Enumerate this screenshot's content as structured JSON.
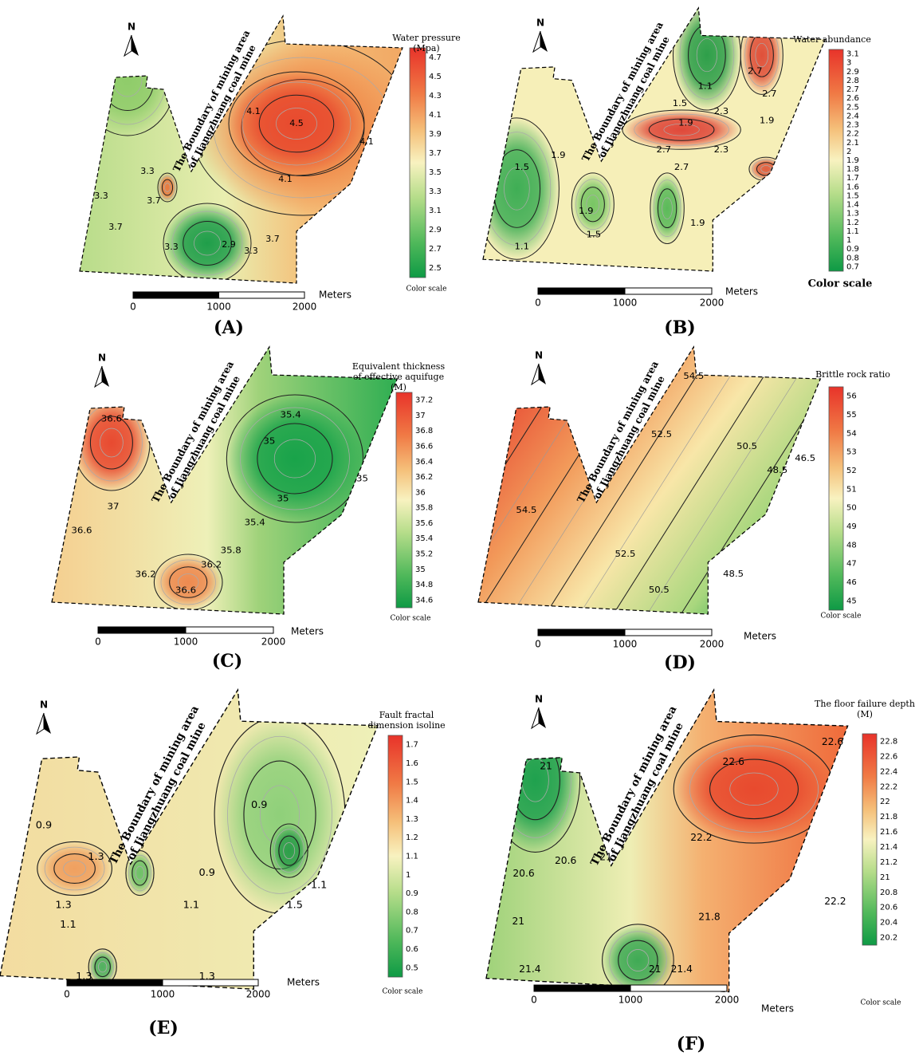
{
  "panels": [
    {
      "label": "(A)",
      "legend_title": [
        "Water pressure",
        "(Mpa)"
      ],
      "colorbar_ticks": [
        "4.7",
        "4.5",
        "4.3",
        "4.1",
        "3.9",
        "3.7",
        "3.5",
        "3.3",
        "3.1",
        "2.9",
        "2.7",
        "2.5"
      ],
      "color_scale": "Color scale",
      "north": "N",
      "boundary_text": [
        "The Boundary of mining area",
        "of Jiangzhuang coal mine"
      ],
      "scale_labels": [
        "0",
        "1000",
        "2000"
      ],
      "scale_unit": "Meters",
      "contour_labels": [
        "4.1",
        "4.5",
        "4.1",
        "4.1",
        "3.3",
        "3.3",
        "3.7",
        "3.7",
        "3.3",
        "2.9",
        "3.3",
        "3.7"
      ]
    },
    {
      "label": "(B)",
      "legend_title": [
        "Water abundance"
      ],
      "colorbar_ticks": [
        "3.1",
        "3",
        "2.9",
        "2.8",
        "2.7",
        "2.6",
        "2.5",
        "2.4",
        "2.3",
        "2.2",
        "2.1",
        "2",
        "1.9",
        "1.8",
        "1.7",
        "1.6",
        "1.5",
        "1.4",
        "1.3",
        "1.2",
        "1.1",
        "1",
        "0.9",
        "0.8",
        "0.7"
      ],
      "color_scale": "Color scale",
      "north": "N",
      "boundary_text": [
        "The Boundary of mining area",
        "of Jiangzhuang coal mine"
      ],
      "scale_labels": [
        "0",
        "1000",
        "2000"
      ],
      "scale_unit": "Meters",
      "contour_labels": [
        "2.7",
        "2.7",
        "1.1",
        "1.5",
        "2.3",
        "1.9",
        "2.7",
        "2.3",
        "2.7",
        "1.9",
        "1.5",
        "1.9",
        "1.5",
        "1.1",
        "1.9",
        "1.9"
      ]
    },
    {
      "label": "(C)",
      "legend_title": [
        "Equivalent thickness",
        "of effective aquifuge",
        "(M)"
      ],
      "colorbar_ticks": [
        "37.2",
        "37",
        "36.8",
        "36.6",
        "36.4",
        "36.2",
        "36",
        "35.8",
        "35.6",
        "35.4",
        "35.2",
        "35",
        "34.8",
        "34.6"
      ],
      "color_scale": "Color scale",
      "north": "N",
      "boundary_text": [
        "The Boundary of mining area",
        "of Jiangzhuang coal mine"
      ],
      "scale_labels": [
        "0",
        "1000",
        "2000"
      ],
      "scale_unit": "Meters",
      "contour_labels": [
        "36.6",
        "37",
        "36.6",
        "35.4",
        "35",
        "35",
        "35",
        "35.4",
        "35.8",
        "36.2",
        "36.6",
        "36.2"
      ]
    },
    {
      "label": "(D)",
      "legend_title": [
        "Brittle rock ratio"
      ],
      "colorbar_ticks": [
        "56",
        "55",
        "54",
        "53",
        "52",
        "51",
        "50",
        "49",
        "48",
        "47",
        "46",
        "45"
      ],
      "color_scale": "Color scale",
      "north": "N",
      "boundary_text": [
        "The Boundary of mining area",
        "of Jiangzhuang coal mine"
      ],
      "scale_labels": [
        "0",
        "1000",
        "2000"
      ],
      "scale_unit": "Meters",
      "contour_labels": [
        "54.5",
        "52.5",
        "50.5",
        "48.5",
        "46.5",
        "54.5",
        "52.5",
        "50.5",
        "48.5"
      ]
    },
    {
      "label": "(E)",
      "legend_title": [
        "Fault fractal",
        "dimension isoline"
      ],
      "colorbar_ticks": [
        "1.7",
        "1.6",
        "1.5",
        "1.4",
        "1.3",
        "1.2",
        "1.1",
        "1",
        "0.9",
        "0.8",
        "0.7",
        "0.6",
        "0.5"
      ],
      "color_scale": "Color scale",
      "north": "N",
      "boundary_text": [
        "The Boundary of mining area",
        "of Jiangzhuang coal mine"
      ],
      "scale_labels": [
        "0",
        "1000",
        "2000"
      ],
      "scale_unit": "Meters",
      "contour_labels": [
        "0.9",
        "0.9",
        "1.1",
        "1.5",
        "1.3",
        "1.1",
        "1.3",
        "1.3",
        "1.1",
        "0.9",
        "1.3"
      ]
    },
    {
      "label": "(F)",
      "legend_title": [
        "The floor failure depth",
        "(M)"
      ],
      "colorbar_ticks": [
        "22.8",
        "22.6",
        "22.4",
        "22.2",
        "22",
        "21.8",
        "21.6",
        "21.4",
        "21.2",
        "21",
        "20.8",
        "20.6",
        "20.4",
        "20.2"
      ],
      "color_scale": "Color scale",
      "north": "N",
      "boundary_text": [
        "The Boundary of mining area",
        "of Jiangzhuang coal mine"
      ],
      "scale_labels": [
        "0",
        "1000",
        "2000"
      ],
      "scale_unit": "Meters",
      "contour_labels": [
        "21",
        "20.6",
        "20.6",
        "21",
        "21",
        "21.4",
        "21",
        "21.4",
        "21.8",
        "22.2",
        "22.6",
        "22.6",
        "22.2"
      ]
    }
  ]
}
